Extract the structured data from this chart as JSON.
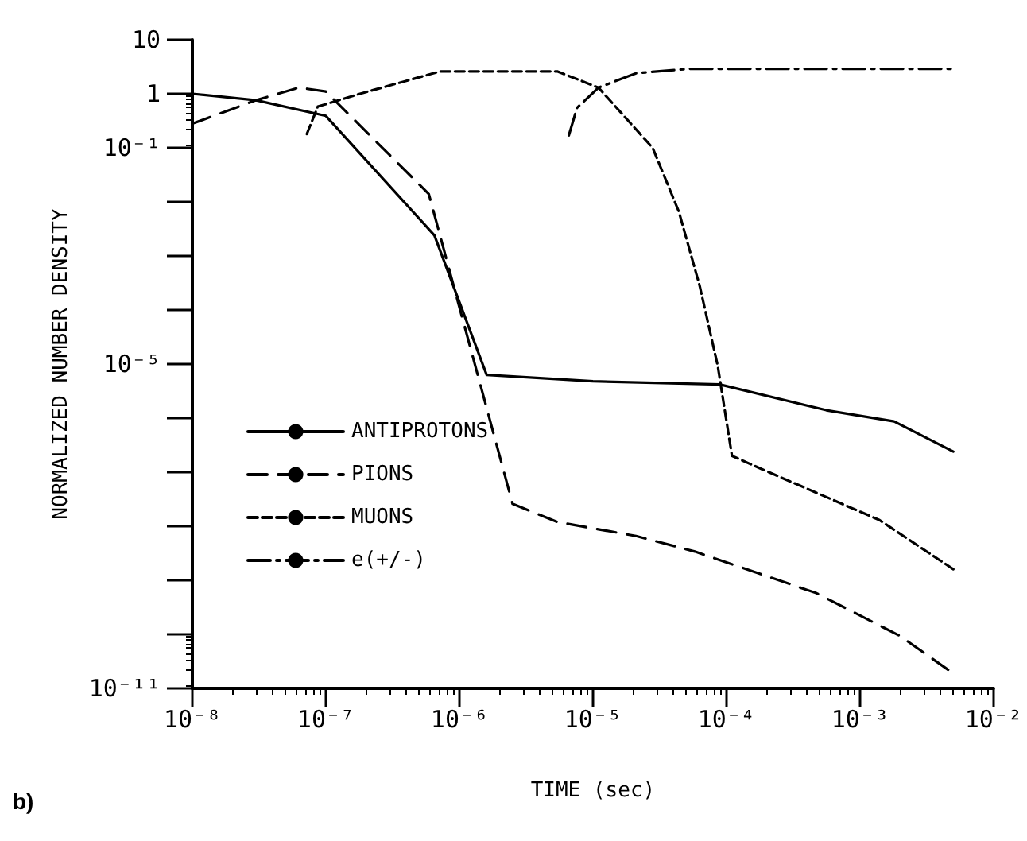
{
  "chart_data": {
    "type": "line",
    "xlabel": "TIME (sec)",
    "ylabel": "NORMALIZED NUMBER DENSITY",
    "log": "xy",
    "grid": false,
    "legend": "left",
    "marker": "none",
    "annotations": [
      "b)"
    ],
    "xlim": [
      1e-08,
      0.01
    ],
    "xticks": [
      {
        "value": 1e-08,
        "label": "10⁻⁸"
      },
      {
        "value": 1e-07,
        "label": "10⁻⁷"
      },
      {
        "value": 1e-06,
        "label": "10⁻⁶"
      },
      {
        "value": 1e-05,
        "label": "10⁻⁵"
      },
      {
        "value": 0.0001,
        "label": "10⁻⁴"
      },
      {
        "value": 0.001,
        "label": "10⁻³"
      },
      {
        "value": 0.01,
        "label": "10⁻²"
      }
    ],
    "ylim": [
      1e-11,
      10
    ],
    "yticks": [
      {
        "value": 1e-11,
        "label": "10⁻¹¹"
      },
      {
        "value": 1e-10,
        "label": null
      },
      {
        "value": 1e-09,
        "label": null
      },
      {
        "value": 1e-08,
        "label": null
      },
      {
        "value": 1e-07,
        "label": null
      },
      {
        "value": 1e-06,
        "label": null
      },
      {
        "value": 1e-05,
        "label": "10⁻⁵"
      },
      {
        "value": 0.0001,
        "label": null
      },
      {
        "value": 0.001,
        "label": null
      },
      {
        "value": 0.01,
        "label": null
      },
      {
        "value": 0.1,
        "label": "10⁻¹"
      },
      {
        "value": 1,
        "label": "1"
      },
      {
        "value": 10,
        "label": "10"
      }
    ],
    "series": [
      {
        "name": "ANTIPROTONS",
        "color": "#000000",
        "line_style": "solid",
        "x": [
          1e-08,
          3e-08,
          1e-07,
          6.5e-07,
          1.6e-06,
          1e-05,
          8.9e-05,
          0.00056,
          0.0018,
          0.005
        ],
        "values": [
          1,
          0.76,
          0.39,
          0.0024,
          6.3e-06,
          4.8e-06,
          4.2e-06,
          1.4e-06,
          8.7e-07,
          2.4e-07
        ]
      },
      {
        "name": "PIONS",
        "color": "#000000",
        "line_style": "dashed",
        "x": [
          1e-08,
          3e-08,
          6.3e-08,
          1e-07,
          5.9e-07,
          2.5e-06,
          5.4e-06,
          2.1e-05,
          5.8e-05,
          0.00047,
          0.002,
          0.0047
        ],
        "values": [
          0.28,
          0.76,
          1.3,
          1.1,
          0.014,
          2.6e-08,
          1.2e-08,
          6.6e-09,
          3.4e-09,
          5.8e-10,
          9.3e-11,
          2.1e-11
        ]
      },
      {
        "name": "MUONS",
        "color": "#000000",
        "line_style": "dotted",
        "x": [
          7.2e-08,
          8.7e-08,
          1.8e-07,
          7.2e-07,
          5.4e-06,
          1.1e-05,
          2.8e-05,
          4.4e-05,
          6.3e-05,
          8.6e-05,
          0.00011,
          0.00019,
          0.0014,
          0.005
        ],
        "values": [
          0.18,
          0.58,
          1,
          2.6,
          2.6,
          1.3,
          0.1,
          0.0066,
          0.00028,
          9.3e-06,
          2e-07,
          1.1e-07,
          1.3e-08,
          1.6e-09
        ]
      },
      {
        "name": "e(+/-)",
        "color": "#000000",
        "line_style": "dashdot",
        "x": [
          6.6e-06,
          7.6e-06,
          1.1e-05,
          2.1e-05,
          5.2e-05,
          0.005
        ],
        "values": [
          0.17,
          0.55,
          1.3,
          2.4,
          2.9,
          2.9
        ]
      }
    ]
  }
}
